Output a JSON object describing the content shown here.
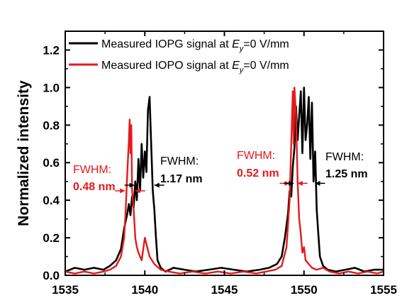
{
  "chart_data": {
    "type": "line",
    "xlabel": "",
    "ylabel": "Normalized intensity",
    "xlim": [
      1535,
      1555
    ],
    "ylim": [
      0,
      1.3
    ],
    "xticks": [
      "1535",
      "1540",
      "1545",
      "1550",
      "1555"
    ],
    "yticks": [
      "0.0",
      "0.2",
      "0.4",
      "0.6",
      "0.8",
      "1.0",
      "1.2"
    ],
    "xtick_values": [
      1535,
      1540,
      1545,
      1550,
      1555
    ],
    "ytick_values": [
      0,
      0.2,
      0.4,
      0.6,
      0.8,
      1.0,
      1.2
    ],
    "grid": false,
    "legend_position": "top-left",
    "legend": [
      {
        "prefix": "Measured IOPG signal at ",
        "sym": "E",
        "sub": "y",
        "suffix": "=0 V/mm"
      },
      {
        "prefix": "Measured IOPO signal at ",
        "sym": "E",
        "sub": "y",
        "suffix": "=0 V/mm"
      }
    ],
    "series": [
      {
        "color": "#000000",
        "x": [
          1535.0,
          1535.6,
          1536.2,
          1536.8,
          1537.4,
          1537.8,
          1538.2,
          1538.5,
          1538.7,
          1538.9,
          1539.0,
          1539.1,
          1539.2,
          1539.3,
          1539.4,
          1539.5,
          1539.6,
          1539.7,
          1539.8,
          1539.9,
          1540.0,
          1540.1,
          1540.2,
          1540.3,
          1540.4,
          1540.5,
          1540.6,
          1540.7,
          1540.8,
          1541.0,
          1541.3,
          1541.8,
          1542.5,
          1543.2,
          1544.0,
          1544.8,
          1545.6,
          1546.4,
          1547.2,
          1547.8,
          1548.3,
          1548.6,
          1548.8,
          1549.0,
          1549.1,
          1549.2,
          1549.3,
          1549.4,
          1549.5,
          1549.6,
          1549.7,
          1549.8,
          1549.9,
          1550.0,
          1550.1,
          1550.2,
          1550.3,
          1550.4,
          1550.5,
          1550.6,
          1550.7,
          1550.8,
          1550.9,
          1551.0,
          1551.2,
          1551.5,
          1552.0,
          1552.6,
          1553.2,
          1553.8,
          1554.4,
          1555.0
        ],
        "y": [
          0.02,
          0.04,
          0.03,
          0.04,
          0.03,
          0.05,
          0.08,
          0.14,
          0.25,
          0.33,
          0.38,
          0.32,
          0.42,
          0.36,
          0.5,
          0.4,
          0.62,
          0.45,
          0.7,
          0.52,
          0.66,
          0.55,
          0.88,
          0.95,
          0.7,
          0.45,
          0.35,
          0.2,
          0.08,
          0.04,
          0.02,
          0.04,
          0.03,
          0.02,
          0.03,
          0.04,
          0.03,
          0.02,
          0.03,
          0.04,
          0.06,
          0.1,
          0.2,
          0.33,
          0.45,
          0.42,
          0.58,
          0.68,
          0.9,
          0.72,
          0.85,
          0.98,
          0.65,
          1.0,
          0.72,
          0.8,
          0.95,
          0.62,
          0.92,
          0.5,
          0.66,
          0.35,
          0.22,
          0.1,
          0.05,
          0.03,
          0.02,
          0.03,
          0.04,
          0.02,
          0.03,
          0.03
        ]
      },
      {
        "color": "#e41a1c",
        "x": [
          1535.0,
          1535.6,
          1536.2,
          1536.8,
          1537.4,
          1537.8,
          1538.2,
          1538.5,
          1538.7,
          1538.8,
          1538.9,
          1539.0,
          1539.05,
          1539.1,
          1539.15,
          1539.2,
          1539.3,
          1539.4,
          1539.5,
          1539.6,
          1539.8,
          1540.0,
          1540.3,
          1540.6,
          1541.0,
          1541.5,
          1542.2,
          1543.0,
          1543.8,
          1544.6,
          1545.4,
          1546.2,
          1547.0,
          1547.6,
          1548.2,
          1548.6,
          1548.9,
          1549.1,
          1549.2,
          1549.3,
          1549.35,
          1549.4,
          1549.5,
          1549.6,
          1549.7,
          1549.8,
          1549.9,
          1550.0,
          1550.1,
          1550.3,
          1550.5,
          1550.8,
          1551.2,
          1551.6,
          1552.2,
          1552.8,
          1553.4,
          1554.0,
          1554.6,
          1555.0
        ],
        "y": [
          0.02,
          0.01,
          0.02,
          0.01,
          0.02,
          0.03,
          0.05,
          0.1,
          0.2,
          0.35,
          0.55,
          0.72,
          0.83,
          0.65,
          0.8,
          0.45,
          0.35,
          0.2,
          0.15,
          0.12,
          0.08,
          0.2,
          0.1,
          0.06,
          0.03,
          0.02,
          0.01,
          0.02,
          0.01,
          0.02,
          0.01,
          0.02,
          0.01,
          0.02,
          0.03,
          0.05,
          0.15,
          0.4,
          0.7,
          0.98,
          0.7,
          1.0,
          0.85,
          0.5,
          0.3,
          0.22,
          0.12,
          0.15,
          0.08,
          0.06,
          0.04,
          0.03,
          0.04,
          0.02,
          0.01,
          0.02,
          0.01,
          0.02,
          0.01,
          0.02
        ]
      }
    ],
    "annotations": [
      {
        "name": "fwhm-iopo-left",
        "label": "FWHM:",
        "value": "0.48 nm",
        "color": "#e41a1c",
        "x1": 1538.75,
        "x2": 1539.4,
        "y": 0.45
      },
      {
        "name": "fwhm-iopg-left",
        "label": "FWHM:",
        "value": "1.17 nm",
        "color": "#000000",
        "x1": 1539.35,
        "x2": 1540.6,
        "y": 0.48
      },
      {
        "name": "fwhm-iopo-right",
        "label": "FWHM:",
        "value": "0.52 nm",
        "color": "#e41a1c",
        "x1": 1549.1,
        "x2": 1549.6,
        "y": 0.49
      },
      {
        "name": "fwhm-iopg-right",
        "label": "FWHM:",
        "value": "1.25 nm",
        "color": "#000000",
        "x1": 1549.35,
        "x2": 1550.7,
        "y": 0.49
      }
    ]
  }
}
